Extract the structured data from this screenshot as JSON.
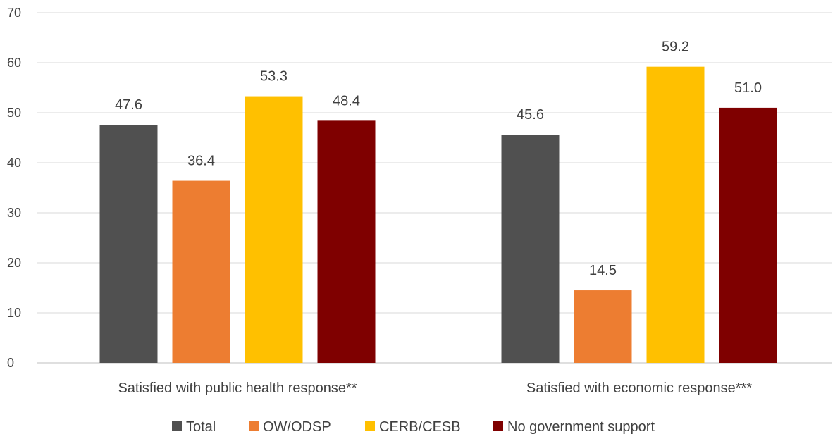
{
  "chart_data": {
    "type": "bar",
    "title": "",
    "xlabel": "",
    "ylabel": "",
    "ylim": [
      0,
      70
    ],
    "yticks": [
      0,
      10,
      20,
      30,
      40,
      50,
      60,
      70
    ],
    "grid": true,
    "legend_position": "bottom",
    "categories": [
      "Satisfied with public health response**",
      "Satisfied with economic response***"
    ],
    "series": [
      {
        "name": "Total",
        "color": "#505050",
        "values": [
          47.6,
          45.6
        ],
        "labels": [
          "47.6",
          "45.6"
        ]
      },
      {
        "name": "OW/ODSP",
        "color": "#ED7D31",
        "values": [
          36.4,
          14.5
        ],
        "labels": [
          "36.4",
          "14.5"
        ]
      },
      {
        "name": "CERB/CESB",
        "color": "#FFC000",
        "values": [
          53.3,
          59.2
        ],
        "labels": [
          "53.3",
          "59.2"
        ]
      },
      {
        "name": "No government support",
        "color": "#7F0000",
        "values": [
          48.4,
          51.0
        ],
        "labels": [
          "48.4",
          "51.0"
        ]
      }
    ]
  }
}
